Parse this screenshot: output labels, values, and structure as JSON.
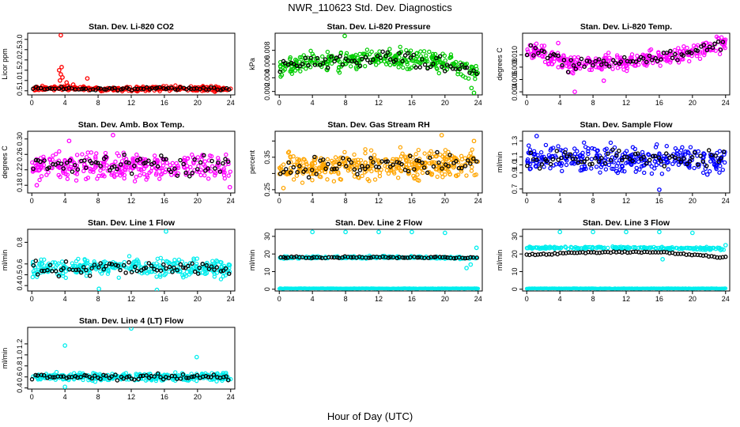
{
  "page_title": "NWR_110623  Std. Dev. Diagnostics",
  "x_axis_label": "Hour of Day (UTC)",
  "chart_data": [
    {
      "type": "scatter",
      "title": "Stan. Dev. Li-820 CO2",
      "ylabel": "Licor ppm",
      "color": "#ff0000",
      "xlim": [
        -0.5,
        24.5
      ],
      "ylim": [
        0.3,
        3.3
      ],
      "xticks": [
        0,
        4,
        8,
        12,
        16,
        20,
        24
      ],
      "yticks": [
        0.5,
        1.0,
        1.5,
        2.0,
        2.5,
        3.0
      ],
      "yticklabels": [
        "0.5",
        "1.0",
        "1.5",
        "2.0",
        "2.5",
        "3.0"
      ],
      "base": [
        {
          "x": 0,
          "y": 0.6
        },
        {
          "x": 4,
          "y": 0.62
        },
        {
          "x": 8,
          "y": 0.58
        },
        {
          "x": 12,
          "y": 0.6
        },
        {
          "x": 16,
          "y": 0.62
        },
        {
          "x": 20,
          "y": 0.6
        },
        {
          "x": 24,
          "y": 0.58
        }
      ],
      "spread": 0.09,
      "dense": 320,
      "black": 70,
      "outliers": [
        {
          "x": 3.5,
          "y": 3.2
        },
        {
          "x": 3.3,
          "y": 1.5
        },
        {
          "x": 3.5,
          "y": 1.3
        },
        {
          "x": 3.7,
          "y": 1.15
        },
        {
          "x": 3.6,
          "y": 1.65
        },
        {
          "x": 3.4,
          "y": 1.0
        },
        {
          "x": 4.2,
          "y": 0.9
        },
        {
          "x": 6.7,
          "y": 1.1
        },
        {
          "x": 5.0,
          "y": 0.8
        }
      ]
    },
    {
      "type": "scatter",
      "title": "Stan. Dev. Li-820 Pressure",
      "ylabel": "kPa",
      "color": "#00cc00",
      "xlim": [
        -0.5,
        24.5
      ],
      "ylim": [
        0.0015,
        0.0105
      ],
      "xticks": [
        0,
        4,
        8,
        12,
        16,
        20,
        24
      ],
      "yticks": [
        0.002,
        0.004,
        0.006,
        0.008
      ],
      "yticklabels": [
        "0.002",
        "0.004",
        "0.006",
        "0.008"
      ],
      "base": [
        {
          "x": 0,
          "y": 0.0057
        },
        {
          "x": 4,
          "y": 0.0063
        },
        {
          "x": 8,
          "y": 0.0066
        },
        {
          "x": 12,
          "y": 0.0068
        },
        {
          "x": 16,
          "y": 0.0067
        },
        {
          "x": 20,
          "y": 0.006
        },
        {
          "x": 22,
          "y": 0.0055
        },
        {
          "x": 24,
          "y": 0.0045
        }
      ],
      "spread": 0.0012,
      "dense": 320,
      "black": 70,
      "outliers": [
        {
          "x": 7.9,
          "y": 0.0101
        },
        {
          "x": 23.5,
          "y": 0.0018
        },
        {
          "x": 23.2,
          "y": 0.0025
        },
        {
          "x": 0.3,
          "y": 0.0044
        }
      ]
    },
    {
      "type": "scatter",
      "title": "Stan. Dev. Li-820 Temp.",
      "ylabel": "degrees C",
      "color": "#ff00ff",
      "xlim": [
        -0.5,
        24.5
      ],
      "ylim": [
        0.0035,
        0.0135
      ],
      "xticks": [
        0,
        4,
        8,
        12,
        16,
        20,
        24
      ],
      "yticks": [
        0.004,
        0.006,
        0.008,
        0.01
      ],
      "yticklabels": [
        "0.004",
        "0.006",
        "0.008",
        "0.010"
      ],
      "base": [
        {
          "x": 0,
          "y": 0.0105
        },
        {
          "x": 2,
          "y": 0.0103
        },
        {
          "x": 3.5,
          "y": 0.0095
        },
        {
          "x": 5,
          "y": 0.0082
        },
        {
          "x": 7,
          "y": 0.0086
        },
        {
          "x": 9,
          "y": 0.0085
        },
        {
          "x": 12,
          "y": 0.0088
        },
        {
          "x": 15,
          "y": 0.0094
        },
        {
          "x": 18,
          "y": 0.0098
        },
        {
          "x": 21,
          "y": 0.0108
        },
        {
          "x": 24,
          "y": 0.012
        }
      ],
      "spread": 0.0011,
      "dense": 320,
      "black": 70,
      "outliers": [
        {
          "x": 5.8,
          "y": 0.004
        },
        {
          "x": 9.3,
          "y": 0.0058
        },
        {
          "x": 23.5,
          "y": 0.0128
        },
        {
          "x": 3.8,
          "y": 0.0119
        }
      ]
    },
    {
      "type": "scatter",
      "title": "Stan. Dev. Amb. Box Temp.",
      "ylabel": "degrees C",
      "color": "#ff00ff",
      "xlim": [
        -0.5,
        24.5
      ],
      "ylim": [
        0.16,
        0.32
      ],
      "xticks": [
        0,
        4,
        8,
        12,
        16,
        20,
        24
      ],
      "yticks": [
        0.18,
        0.22,
        0.26,
        0.3
      ],
      "yticklabels": [
        "0.18",
        "0.22",
        "0.26",
        "0.30"
      ],
      "base": [
        {
          "x": 0,
          "y": 0.23
        },
        {
          "x": 12,
          "y": 0.23
        },
        {
          "x": 24,
          "y": 0.23
        }
      ],
      "spread": 0.028,
      "dense": 320,
      "black": 70,
      "outliers": [
        {
          "x": 9.8,
          "y": 0.31
        },
        {
          "x": 4.5,
          "y": 0.295
        },
        {
          "x": 0.6,
          "y": 0.18
        },
        {
          "x": 23.9,
          "y": 0.175
        }
      ]
    },
    {
      "type": "scatter",
      "title": "Stan. Dev. Gas Stream RH",
      "ylabel": "percent",
      "color": "#ffa500",
      "xlim": [
        -0.5,
        24.5
      ],
      "ylim": [
        0.24,
        0.43
      ],
      "xticks": [
        0,
        4,
        8,
        12,
        16,
        20,
        24
      ],
      "yticks": [
        0.25,
        0.3,
        0.35,
        0.4
      ],
      "yticklabels": [
        "0.25",
        "",
        "0.35",
        ""
      ],
      "base": [
        {
          "x": 0,
          "y": 0.32
        },
        {
          "x": 12,
          "y": 0.325
        },
        {
          "x": 24,
          "y": 0.33
        }
      ],
      "spread": 0.035,
      "dense": 380,
      "black": 70,
      "outliers": [
        {
          "x": 19.6,
          "y": 0.418
        },
        {
          "x": 0.5,
          "y": 0.255
        },
        {
          "x": 23.5,
          "y": 0.4
        }
      ]
    },
    {
      "type": "scatter",
      "title": "Stan. Dev. Sample Flow",
      "ylabel": "ml/min",
      "color": "#0000ff",
      "xlim": [
        -0.5,
        24.5
      ],
      "ylim": [
        0.65,
        1.42
      ],
      "xticks": [
        0,
        4,
        8,
        12,
        16,
        20,
        24
      ],
      "yticks": [
        0.7,
        0.9,
        1.0,
        1.1,
        1.3
      ],
      "yticklabels": [
        "0.7",
        "0.9",
        "1.0",
        "1.1",
        "1.3"
      ],
      "base": [
        {
          "x": 0,
          "y": 1.08
        },
        {
          "x": 12,
          "y": 1.07
        },
        {
          "x": 24,
          "y": 1.06
        }
      ],
      "spread": 0.13,
      "dense": 320,
      "black": 70,
      "outliers": [
        {
          "x": 16,
          "y": 0.69
        },
        {
          "x": 1.2,
          "y": 1.36
        },
        {
          "x": 21.8,
          "y": 0.88
        }
      ]
    },
    {
      "type": "scatter",
      "title": "Stan. Dev. Line 1 Flow",
      "ylabel": "ml/min",
      "color": "#00eeee",
      "xlim": [
        -0.5,
        24.5
      ],
      "ylim": [
        0.35,
        0.92
      ],
      "xticks": [
        0,
        4,
        8,
        12,
        16,
        20,
        24
      ],
      "yticks": [
        0.4,
        0.5,
        0.6,
        0.8
      ],
      "yticklabels": [
        "0.4",
        "0.5",
        "0.6",
        "0.8"
      ],
      "base": [
        {
          "x": 0,
          "y": 0.56
        },
        {
          "x": 12,
          "y": 0.57
        },
        {
          "x": 24,
          "y": 0.56
        }
      ],
      "spread": 0.07,
      "dense": 320,
      "black": 70,
      "outliers": [
        {
          "x": 16.2,
          "y": 0.9
        },
        {
          "x": 8.1,
          "y": 0.37
        },
        {
          "x": 15.1,
          "y": 0.36
        }
      ]
    },
    {
      "type": "scatter",
      "title": "Stan. Dev. Line 2 Flow",
      "ylabel": "ml/min",
      "color": "#00eeee",
      "xlim": [
        -0.5,
        24.5
      ],
      "ylim": [
        -1,
        34
      ],
      "xticks": [
        0,
        4,
        8,
        12,
        16,
        20,
        24
      ],
      "yticks": [
        0,
        10,
        20,
        30
      ],
      "yticklabels": [
        "0",
        "10",
        "20",
        "30"
      ],
      "base": [
        {
          "x": 0,
          "y": 18
        },
        {
          "x": 12,
          "y": 18.2
        },
        {
          "x": 24,
          "y": 17.8
        }
      ],
      "spread": 0.5,
      "dense": 220,
      "black": 70,
      "baseline": 0.4,
      "outliers": [
        {
          "x": 4,
          "y": 32.5
        },
        {
          "x": 8,
          "y": 32.5
        },
        {
          "x": 12,
          "y": 32.5
        },
        {
          "x": 16,
          "y": 32.5
        },
        {
          "x": 20,
          "y": 32
        },
        {
          "x": 23.8,
          "y": 23.5
        },
        {
          "x": 22.6,
          "y": 12
        },
        {
          "x": 23.1,
          "y": 14
        }
      ]
    },
    {
      "type": "scatter",
      "title": "Stan. Dev. Line 3 Flow",
      "ylabel": "ml/min",
      "color": "#00eeee",
      "xlim": [
        -0.5,
        24.5
      ],
      "ylim": [
        -1,
        34
      ],
      "xticks": [
        0,
        4,
        8,
        12,
        16,
        20,
        24
      ],
      "yticks": [
        0,
        10,
        20,
        30
      ],
      "yticklabels": [
        "0",
        "10",
        "20",
        "30"
      ],
      "base": [
        {
          "x": 0,
          "y": 23.5
        },
        {
          "x": 12,
          "y": 23.5
        },
        {
          "x": 24,
          "y": 23
        }
      ],
      "spread": 0.6,
      "dense": 220,
      "black": 0,
      "baseline": 0.4,
      "blackline": [
        {
          "x": 0,
          "y": 19.5
        },
        {
          "x": 8,
          "y": 21
        },
        {
          "x": 16,
          "y": 21
        },
        {
          "x": 24,
          "y": 18
        }
      ],
      "outliers": [
        {
          "x": 4,
          "y": 32.5
        },
        {
          "x": 8,
          "y": 32.5
        },
        {
          "x": 12,
          "y": 32.5
        },
        {
          "x": 16,
          "y": 32.5
        },
        {
          "x": 20,
          "y": 32
        },
        {
          "x": 24,
          "y": 25
        },
        {
          "x": 16.4,
          "y": 17
        }
      ]
    },
    {
      "type": "scatter",
      "title": "Stan. Dev. Line 4 (LT) Flow",
      "ylabel": "ml/min",
      "color": "#00eeee",
      "xlim": [
        -0.5,
        24.5
      ],
      "ylim": [
        0.38,
        1.5
      ],
      "xticks": [
        0,
        4,
        8,
        12,
        16,
        20,
        24
      ],
      "yticks": [
        0.4,
        0.6,
        0.8,
        1.0,
        1.2
      ],
      "yticklabels": [
        "0.4",
        "0.6",
        "0.8",
        "1.0",
        "1.2"
      ],
      "base": [
        {
          "x": 0,
          "y": 0.6
        },
        {
          "x": 12,
          "y": 0.6
        },
        {
          "x": 24,
          "y": 0.6
        }
      ],
      "spread": 0.06,
      "dense": 320,
      "black": 70,
      "outliers": [
        {
          "x": 12,
          "y": 1.48
        },
        {
          "x": 4,
          "y": 1.17
        },
        {
          "x": 19.9,
          "y": 0.96
        },
        {
          "x": 4,
          "y": 0.42
        }
      ]
    }
  ]
}
